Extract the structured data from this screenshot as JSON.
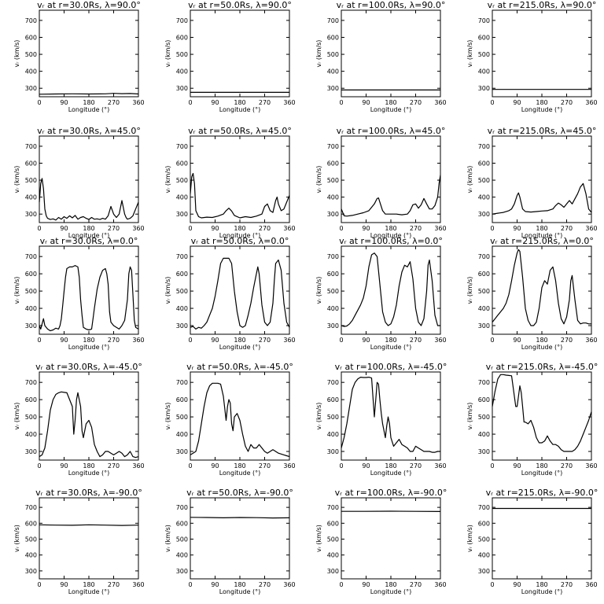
{
  "figure": {
    "xlabel": "Longitude (°)",
    "ylabel": "vᵣ (km/s)",
    "xticks": [
      "0",
      "90",
      "180",
      "270",
      "360"
    ],
    "yticks": [
      "300",
      "400",
      "500",
      "600",
      "700"
    ]
  },
  "chart_data": [
    {
      "type": "line",
      "title": "vᵣ at r=30.0Rs, λ=90.0°",
      "xlim": [
        0,
        360
      ],
      "ylim": [
        250,
        760
      ],
      "x": [
        0,
        60,
        120,
        180,
        240,
        270,
        300,
        330,
        360
      ],
      "y": [
        265,
        266,
        267,
        266,
        267,
        270,
        268,
        269,
        266
      ]
    },
    {
      "type": "line",
      "title": "vᵣ at r=50.0Rs, λ=90.0°",
      "xlim": [
        0,
        360
      ],
      "ylim": [
        250,
        760
      ],
      "x": [
        0,
        90,
        180,
        270,
        360
      ],
      "y": [
        276,
        276,
        276,
        276,
        276
      ]
    },
    {
      "type": "line",
      "title": "vᵣ at r=100.0Rs, λ=90.0°",
      "xlim": [
        0,
        360
      ],
      "ylim": [
        250,
        760
      ],
      "x": [
        0,
        90,
        180,
        270,
        360
      ],
      "y": [
        290,
        290,
        290,
        290,
        290
      ]
    },
    {
      "type": "line",
      "title": "vᵣ at r=215.0Rs, λ=90.0°",
      "xlim": [
        0,
        360
      ],
      "ylim": [
        250,
        760
      ],
      "x": [
        0,
        90,
        180,
        270,
        360
      ],
      "y": [
        293,
        293,
        293,
        293,
        293
      ]
    },
    {
      "type": "line",
      "title": "vᵣ at r=30.0Rs, λ=45.0°",
      "xlim": [
        0,
        360
      ],
      "ylim": [
        250,
        760
      ],
      "x": [
        0,
        5,
        10,
        15,
        20,
        25,
        30,
        40,
        50,
        60,
        70,
        80,
        90,
        100,
        110,
        120,
        130,
        140,
        150,
        160,
        170,
        180,
        190,
        200,
        210,
        220,
        230,
        240,
        250,
        260,
        270,
        280,
        290,
        300,
        310,
        315,
        320,
        330,
        340,
        350,
        360
      ],
      "y": [
        370,
        480,
        510,
        450,
        330,
        290,
        275,
        268,
        272,
        265,
        280,
        270,
        285,
        275,
        290,
        278,
        292,
        270,
        280,
        285,
        275,
        268,
        280,
        270,
        272,
        268,
        275,
        270,
        290,
        345,
        300,
        280,
        300,
        380,
        300,
        280,
        270,
        275,
        290,
        330,
        370
      ]
    },
    {
      "type": "line",
      "title": "vᵣ at r=50.0Rs, λ=45.0°",
      "xlim": [
        0,
        360
      ],
      "ylim": [
        250,
        760
      ],
      "x": [
        0,
        5,
        10,
        15,
        20,
        30,
        40,
        60,
        80,
        100,
        120,
        130,
        140,
        150,
        160,
        180,
        200,
        220,
        240,
        260,
        270,
        280,
        290,
        300,
        310,
        315,
        320,
        330,
        340,
        350,
        360
      ],
      "y": [
        420,
        520,
        540,
        480,
        320,
        285,
        278,
        282,
        280,
        288,
        300,
        320,
        335,
        318,
        292,
        278,
        285,
        280,
        288,
        300,
        345,
        360,
        320,
        310,
        380,
        400,
        360,
        320,
        330,
        370,
        410
      ]
    },
    {
      "type": "line",
      "title": "vᵣ at r=100.0Rs, λ=45.0°",
      "xlim": [
        0,
        360
      ],
      "ylim": [
        250,
        760
      ],
      "x": [
        0,
        5,
        10,
        20,
        40,
        60,
        80,
        100,
        120,
        130,
        135,
        140,
        150,
        160,
        180,
        200,
        220,
        240,
        250,
        260,
        270,
        280,
        290,
        300,
        310,
        320,
        330,
        340,
        350,
        355,
        360
      ],
      "y": [
        330,
        310,
        290,
        288,
        292,
        300,
        308,
        320,
        360,
        392,
        395,
        370,
        320,
        300,
        300,
        300,
        296,
        300,
        320,
        355,
        360,
        335,
        355,
        392,
        360,
        330,
        330,
        350,
        400,
        480,
        530
      ]
    },
    {
      "type": "line",
      "title": "vᵣ at r=215.0Rs, λ=45.0°",
      "xlim": [
        0,
        360
      ],
      "ylim": [
        250,
        760
      ],
      "x": [
        0,
        20,
        40,
        60,
        70,
        80,
        90,
        95,
        100,
        110,
        120,
        140,
        160,
        180,
        200,
        220,
        230,
        240,
        250,
        260,
        270,
        280,
        290,
        300,
        310,
        320,
        330,
        340,
        350,
        360
      ],
      "y": [
        300,
        305,
        310,
        320,
        330,
        360,
        410,
        425,
        400,
        330,
        315,
        312,
        315,
        318,
        320,
        330,
        350,
        365,
        355,
        340,
        360,
        380,
        360,
        390,
        420,
        460,
        480,
        420,
        330,
        310
      ]
    },
    {
      "type": "line",
      "title": "vᵣ at r=30.0Rs, λ=0.0°",
      "xlim": [
        0,
        360
      ],
      "ylim": [
        250,
        760
      ],
      "x": [
        0,
        5,
        10,
        15,
        20,
        30,
        40,
        50,
        60,
        70,
        75,
        80,
        85,
        90,
        95,
        100,
        110,
        120,
        130,
        140,
        145,
        150,
        155,
        160,
        170,
        180,
        190,
        195,
        200,
        210,
        220,
        230,
        240,
        245,
        250,
        255,
        260,
        270,
        280,
        290,
        300,
        310,
        320,
        325,
        330,
        335,
        340,
        345,
        350,
        360
      ],
      "y": [
        300,
        280,
        310,
        340,
        300,
        280,
        270,
        275,
        285,
        280,
        300,
        340,
        420,
        500,
        580,
        630,
        640,
        640,
        648,
        640,
        580,
        450,
        360,
        290,
        280,
        275,
        280,
        340,
        400,
        510,
        580,
        620,
        630,
        600,
        540,
        380,
        320,
        300,
        290,
        280,
        300,
        330,
        450,
        600,
        640,
        620,
        480,
        330,
        290,
        280
      ]
    },
    {
      "type": "line",
      "title": "vᵣ at r=50.0Rs, λ=0.0°",
      "xlim": [
        0,
        360
      ],
      "ylim": [
        250,
        760
      ],
      "x": [
        0,
        10,
        20,
        30,
        40,
        50,
        60,
        70,
        80,
        90,
        100,
        110,
        120,
        130,
        140,
        150,
        160,
        170,
        180,
        190,
        200,
        210,
        220,
        230,
        240,
        245,
        250,
        260,
        270,
        280,
        290,
        300,
        305,
        310,
        320,
        330,
        340,
        350,
        360
      ],
      "y": [
        290,
        295,
        280,
        290,
        285,
        300,
        320,
        360,
        400,
        470,
        560,
        660,
        690,
        690,
        690,
        660,
        500,
        380,
        300,
        290,
        300,
        360,
        430,
        520,
        600,
        640,
        600,
        420,
        320,
        300,
        320,
        430,
        560,
        660,
        680,
        620,
        430,
        320,
        290
      ]
    },
    {
      "type": "line",
      "title": "vᵣ at r=100.0Rs, λ=0.0°",
      "xlim": [
        0,
        360
      ],
      "ylim": [
        250,
        760
      ],
      "x": [
        0,
        10,
        20,
        30,
        40,
        50,
        60,
        70,
        80,
        90,
        100,
        110,
        120,
        130,
        140,
        150,
        160,
        170,
        180,
        190,
        200,
        210,
        220,
        230,
        240,
        250,
        260,
        270,
        280,
        290,
        300,
        310,
        315,
        320,
        330,
        340,
        350,
        360
      ],
      "y": [
        300,
        295,
        298,
        310,
        330,
        360,
        390,
        420,
        460,
        530,
        640,
        710,
        720,
        700,
        540,
        380,
        320,
        300,
        310,
        350,
        420,
        530,
        610,
        650,
        640,
        670,
        570,
        400,
        320,
        300,
        340,
        500,
        650,
        680,
        560,
        360,
        300,
        300
      ]
    },
    {
      "type": "line",
      "title": "vᵣ at r=215.0Rs, λ=0.0°",
      "xlim": [
        0,
        360
      ],
      "ylim": [
        250,
        760
      ],
      "x": [
        0,
        10,
        20,
        30,
        40,
        50,
        60,
        70,
        80,
        90,
        95,
        100,
        110,
        120,
        130,
        140,
        150,
        160,
        170,
        180,
        190,
        200,
        210,
        220,
        230,
        240,
        250,
        260,
        270,
        280,
        285,
        290,
        300,
        310,
        320,
        330,
        340,
        350,
        360
      ],
      "y": [
        320,
        340,
        360,
        380,
        400,
        430,
        480,
        560,
        650,
        720,
        740,
        730,
        580,
        400,
        330,
        300,
        300,
        320,
        400,
        520,
        560,
        540,
        620,
        640,
        560,
        430,
        340,
        310,
        350,
        450,
        560,
        590,
        450,
        330,
        310,
        315,
        315,
        310,
        310
      ]
    },
    {
      "type": "line",
      "title": "vᵣ at r=30.0Rs, λ=-45.0°",
      "xlim": [
        0,
        360
      ],
      "ylim": [
        250,
        760
      ],
      "x": [
        0,
        10,
        20,
        30,
        40,
        50,
        60,
        70,
        80,
        90,
        100,
        110,
        120,
        125,
        130,
        135,
        140,
        150,
        155,
        160,
        170,
        180,
        190,
        200,
        210,
        220,
        230,
        240,
        250,
        260,
        270,
        280,
        290,
        300,
        310,
        320,
        330,
        340,
        350,
        360
      ],
      "y": [
        270,
        280,
        320,
        420,
        540,
        600,
        630,
        640,
        645,
        642,
        640,
        600,
        560,
        400,
        480,
        600,
        640,
        560,
        420,
        380,
        460,
        480,
        440,
        340,
        300,
        270,
        280,
        300,
        300,
        290,
        280,
        290,
        300,
        290,
        270,
        280,
        300,
        270,
        265,
        270
      ]
    },
    {
      "type": "line",
      "title": "vᵣ at r=50.0Rs, λ=-45.0°",
      "xlim": [
        0,
        360
      ],
      "ylim": [
        250,
        760
      ],
      "x": [
        0,
        10,
        20,
        30,
        40,
        50,
        60,
        70,
        80,
        90,
        100,
        110,
        120,
        130,
        135,
        140,
        145,
        150,
        155,
        160,
        170,
        180,
        190,
        200,
        210,
        220,
        230,
        240,
        250,
        260,
        270,
        280,
        290,
        300,
        310,
        320,
        330,
        340,
        350,
        360
      ],
      "y": [
        280,
        290,
        300,
        360,
        460,
        560,
        640,
        680,
        695,
        695,
        695,
        690,
        620,
        480,
        560,
        600,
        580,
        460,
        420,
        500,
        520,
        480,
        400,
        330,
        300,
        340,
        320,
        320,
        340,
        320,
        300,
        290,
        300,
        310,
        300,
        290,
        285,
        280,
        275,
        270
      ]
    },
    {
      "type": "line",
      "title": "vᵣ at r=100.0Rs, λ=-45.0°",
      "xlim": [
        0,
        360
      ],
      "ylim": [
        250,
        760
      ],
      "x": [
        0,
        10,
        20,
        30,
        40,
        50,
        60,
        70,
        80,
        90,
        100,
        110,
        120,
        125,
        130,
        135,
        140,
        145,
        150,
        160,
        165,
        170,
        175,
        180,
        190,
        200,
        210,
        220,
        230,
        240,
        250,
        260,
        270,
        280,
        290,
        300,
        310,
        320,
        330,
        340,
        350,
        360
      ],
      "y": [
        320,
        380,
        460,
        560,
        660,
        700,
        720,
        730,
        728,
        728,
        730,
        725,
        500,
        600,
        700,
        690,
        600,
        520,
        460,
        380,
        450,
        500,
        460,
        380,
        330,
        350,
        370,
        340,
        330,
        320,
        300,
        300,
        330,
        320,
        310,
        300,
        300,
        300,
        295,
        295,
        300,
        300
      ]
    },
    {
      "type": "line",
      "title": "vᵣ at r=215.0Rs, λ=-45.0°",
      "xlim": [
        0,
        360
      ],
      "ylim": [
        250,
        760
      ],
      "x": [
        0,
        10,
        20,
        30,
        40,
        50,
        60,
        70,
        80,
        85,
        90,
        95,
        100,
        105,
        110,
        115,
        120,
        130,
        140,
        150,
        160,
        170,
        180,
        190,
        200,
        210,
        220,
        230,
        240,
        250,
        260,
        270,
        280,
        290,
        300,
        310,
        320,
        330,
        340,
        350,
        360
      ],
      "y": [
        560,
        650,
        720,
        745,
        745,
        742,
        740,
        738,
        620,
        560,
        560,
        620,
        680,
        640,
        560,
        470,
        470,
        460,
        480,
        440,
        380,
        350,
        350,
        360,
        390,
        360,
        340,
        340,
        330,
        310,
        300,
        300,
        300,
        300,
        310,
        330,
        360,
        400,
        440,
        480,
        530
      ]
    },
    {
      "type": "line",
      "title": "vᵣ at r=30.0Rs, λ=-90.0°",
      "xlim": [
        0,
        360
      ],
      "ylim": [
        250,
        760
      ],
      "x": [
        0,
        60,
        120,
        180,
        240,
        300,
        360
      ],
      "y": [
        590,
        588,
        587,
        590,
        588,
        586,
        588
      ]
    },
    {
      "type": "line",
      "title": "vᵣ at r=50.0Rs, λ=-90.0°",
      "xlim": [
        0,
        360
      ],
      "ylim": [
        250,
        760
      ],
      "x": [
        0,
        60,
        120,
        180,
        240,
        300,
        360
      ],
      "y": [
        637,
        636,
        634,
        636,
        635,
        633,
        634
      ]
    },
    {
      "type": "line",
      "title": "vᵣ at r=100.0Rs, λ=-90.0°",
      "xlim": [
        0,
        360
      ],
      "ylim": [
        250,
        760
      ],
      "x": [
        0,
        90,
        180,
        270,
        360
      ],
      "y": [
        675,
        675,
        676,
        675,
        674
      ]
    },
    {
      "type": "line",
      "title": "vᵣ at r=215.0Rs, λ=-90.0°",
      "xlim": [
        0,
        360
      ],
      "ylim": [
        250,
        760
      ],
      "x": [
        0,
        90,
        180,
        270,
        360
      ],
      "y": [
        693,
        693,
        693,
        693,
        693
      ]
    }
  ]
}
